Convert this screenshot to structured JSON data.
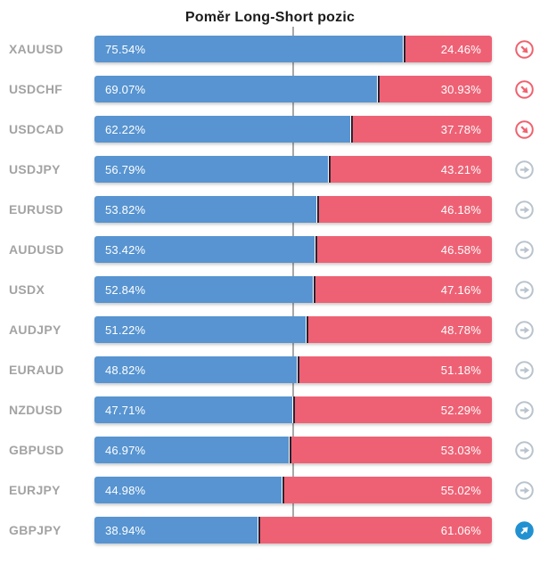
{
  "title": "Poměr Long-Short pozic",
  "colors": {
    "long": "#5794d1",
    "short": "#ee6174",
    "divider": "#2b2230",
    "center_line": "#a9a9a9",
    "pair_label": "#a3a3a3",
    "icon_down": "#f0616e",
    "icon_right": "#b9c3cd",
    "icon_up": "#2191d1"
  },
  "rows": [
    {
      "pair": "XAUUSD",
      "long_label": "75.54%",
      "short_label": "24.46%",
      "trend": "down"
    },
    {
      "pair": "USDCHF",
      "long_label": "69.07%",
      "short_label": "30.93%",
      "trend": "down"
    },
    {
      "pair": "USDCAD",
      "long_label": "62.22%",
      "short_label": "37.78%",
      "trend": "down"
    },
    {
      "pair": "USDJPY",
      "long_label": "56.79%",
      "short_label": "43.21%",
      "trend": "right"
    },
    {
      "pair": "EURUSD",
      "long_label": "53.82%",
      "short_label": "46.18%",
      "trend": "right"
    },
    {
      "pair": "AUDUSD",
      "long_label": "53.42%",
      "short_label": "46.58%",
      "trend": "right"
    },
    {
      "pair": "USDX",
      "long_label": "52.84%",
      "short_label": "47.16%",
      "trend": "right"
    },
    {
      "pair": "AUDJPY",
      "long_label": "51.22%",
      "short_label": "48.78%",
      "trend": "right"
    },
    {
      "pair": "EURAUD",
      "long_label": "48.82%",
      "short_label": "51.18%",
      "trend": "right"
    },
    {
      "pair": "NZDUSD",
      "long_label": "47.71%",
      "short_label": "52.29%",
      "trend": "right"
    },
    {
      "pair": "GBPUSD",
      "long_label": "46.97%",
      "short_label": "53.03%",
      "trend": "right"
    },
    {
      "pair": "EURJPY",
      "long_label": "44.98%",
      "short_label": "55.02%",
      "trend": "right"
    },
    {
      "pair": "GBPJPY",
      "long_label": "38.94%",
      "short_label": "61.06%",
      "trend": "up"
    }
  ],
  "chart_data": {
    "type": "bar",
    "orientation": "horizontal-stacked",
    "title": "Poměr Long-Short pozic",
    "categories": [
      "XAUUSD",
      "USDCHF",
      "USDCAD",
      "USDJPY",
      "EURUSD",
      "AUDUSD",
      "USDX",
      "AUDJPY",
      "EURAUD",
      "NZDUSD",
      "GBPUSD",
      "EURJPY",
      "GBPJPY"
    ],
    "series": [
      {
        "name": "Long %",
        "color": "#5794d1",
        "values": [
          75.54,
          69.07,
          62.22,
          56.79,
          53.82,
          53.42,
          52.84,
          51.22,
          48.82,
          47.71,
          46.97,
          44.98,
          38.94
        ]
      },
      {
        "name": "Short %",
        "color": "#ee6174",
        "values": [
          24.46,
          30.93,
          37.78,
          43.21,
          46.18,
          46.58,
          47.16,
          48.78,
          51.18,
          52.29,
          53.03,
          55.02,
          61.06
        ]
      }
    ],
    "xlim": [
      0,
      100
    ],
    "center_line_at": 50,
    "value_label_format": "0.00%",
    "grid": false,
    "legend": false,
    "trend_indicators": [
      "down",
      "down",
      "down",
      "right",
      "right",
      "right",
      "right",
      "right",
      "right",
      "right",
      "right",
      "right",
      "up"
    ]
  }
}
